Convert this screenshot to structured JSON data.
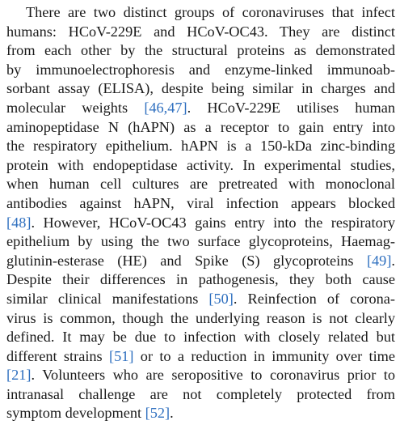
{
  "article": {
    "colors": {
      "text": "#1a1a1a",
      "citation": "#2e6fbf",
      "background": "#ffffff"
    },
    "lines": [
      {
        "segments": [
          {
            "text": "There are two distinct groups of coronaviruses that infect",
            "cite": false
          }
        ]
      },
      {
        "segments": [
          {
            "text": "humans: HCoV-229E and HCoV-OC43. They are distinct",
            "cite": false
          }
        ]
      },
      {
        "segments": [
          {
            "text": "from each other by the structural proteins as demonstrated",
            "cite": false
          }
        ]
      },
      {
        "segments": [
          {
            "text": "by immunoelectrophoresis and enzyme-linked immunoab-",
            "cite": false
          }
        ]
      },
      {
        "segments": [
          {
            "text": "sorbant assay (ELISA), despite being similar in charges and",
            "cite": false
          }
        ]
      },
      {
        "segments": [
          {
            "text": "molecular weights ",
            "cite": false
          },
          {
            "text": "[46,47]",
            "cite": true
          },
          {
            "text": ". HCoV-229E utilises human",
            "cite": false
          }
        ]
      },
      {
        "segments": [
          {
            "text": "aminopeptidase N (hAPN) as a receptor to gain entry into",
            "cite": false
          }
        ]
      },
      {
        "segments": [
          {
            "text": "the respiratory epithelium. hAPN is a 150-kDa zinc-binding",
            "cite": false
          }
        ]
      },
      {
        "segments": [
          {
            "text": "protein with endopeptidase activity. In experimental studies,",
            "cite": false
          }
        ]
      },
      {
        "segments": [
          {
            "text": "when human cell cultures are pretreated with monoclonal",
            "cite": false
          }
        ]
      },
      {
        "segments": [
          {
            "text": "antibodies against hAPN, viral infection appears blocked",
            "cite": false
          }
        ]
      },
      {
        "segments": [
          {
            "text": "[48]",
            "cite": true
          },
          {
            "text": ". However, HCoV-OC43 gains entry into the respiratory",
            "cite": false
          }
        ]
      },
      {
        "segments": [
          {
            "text": "epithelium by using the two surface glycoproteins, Haemag-",
            "cite": false
          }
        ]
      },
      {
        "segments": [
          {
            "text": "glutinin-esterase (HE) and Spike (S) glycoproteins ",
            "cite": false
          },
          {
            "text": "[49]",
            "cite": true
          },
          {
            "text": ".",
            "cite": false
          }
        ]
      },
      {
        "segments": [
          {
            "text": "Despite their differences in pathogenesis, they both cause",
            "cite": false
          }
        ]
      },
      {
        "segments": [
          {
            "text": "similar clinical manifestations ",
            "cite": false
          },
          {
            "text": "[50]",
            "cite": true
          },
          {
            "text": ". Reinfection of corona-",
            "cite": false
          }
        ]
      },
      {
        "segments": [
          {
            "text": "virus is common, though the underlying reason is not clearly",
            "cite": false
          }
        ]
      },
      {
        "segments": [
          {
            "text": "defined. It may be due to infection with closely related but",
            "cite": false
          }
        ]
      },
      {
        "segments": [
          {
            "text": "different strains ",
            "cite": false
          },
          {
            "text": "[51]",
            "cite": true
          },
          {
            "text": " or to a reduction in immunity over time",
            "cite": false
          }
        ]
      },
      {
        "segments": [
          {
            "text": "[21]",
            "cite": true
          },
          {
            "text": ". Volunteers who are seropositive to coronavirus prior to",
            "cite": false
          }
        ]
      },
      {
        "segments": [
          {
            "text": "intranasal challenge are not completely protected from",
            "cite": false
          }
        ]
      },
      {
        "segments": [
          {
            "text": "symptom development ",
            "cite": false
          },
          {
            "text": "[52]",
            "cite": true
          },
          {
            "text": ".",
            "cite": false
          }
        ]
      }
    ]
  }
}
